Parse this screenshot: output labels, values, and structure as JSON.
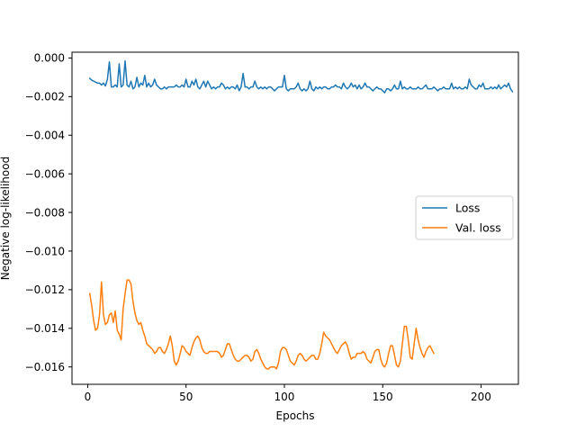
{
  "chart_data": {
    "type": "line",
    "title": "",
    "xlabel": "Epochs",
    "ylabel": "Negative log-likelihood",
    "xlim": [
      -8,
      219
    ],
    "ylim": [
      -0.0169,
      0.0003
    ],
    "xticks": [
      0,
      50,
      100,
      150,
      200
    ],
    "yticks": [
      0.0,
      -0.002,
      -0.004,
      -0.006,
      -0.008,
      -0.01,
      -0.012,
      -0.014,
      -0.016
    ],
    "ytick_labels": [
      "0.000",
      "−0.002",
      "−0.004",
      "−0.006",
      "−0.008",
      "−0.010",
      "−0.012",
      "−0.014",
      "−0.016"
    ],
    "grid": false,
    "legend_position": "center-right",
    "series": [
      {
        "name": "Loss",
        "color": "#1f77b4",
        "x_start": 1,
        "values": [
          -0.00105,
          -0.00115,
          -0.0012,
          -0.00125,
          -0.0013,
          -0.0013,
          -0.0014,
          -0.0013,
          -0.00145,
          -0.0011,
          -0.0002,
          -0.0015,
          -0.0015,
          -0.0014,
          -0.0015,
          -0.0003,
          -0.0015,
          -0.0014,
          -0.00015,
          -0.0014,
          -0.0015,
          -0.0012,
          -0.0016,
          -0.0015,
          -0.001,
          -0.0015,
          -0.0013,
          -0.0014,
          -0.0009,
          -0.0015,
          -0.0013,
          -0.0015,
          -0.0014,
          -0.0011,
          -0.0014,
          -0.0015,
          -0.0016,
          -0.0016,
          -0.0015,
          -0.0016,
          -0.0015,
          -0.0015,
          -0.0015,
          -0.0015,
          -0.0014,
          -0.0015,
          -0.0015,
          -0.0014,
          -0.0015,
          -0.0011,
          -0.0015,
          -0.0015,
          -0.0012,
          -0.0014,
          -0.0011,
          -0.0015,
          -0.0016,
          -0.0014,
          -0.0012,
          -0.0015,
          -0.0012,
          -0.0014,
          -0.0016,
          -0.0015,
          -0.0016,
          -0.0015,
          -0.0015,
          -0.0013,
          -0.0014,
          -0.0016,
          -0.0015,
          -0.0016,
          -0.0015,
          -0.0015,
          -0.0016,
          -0.0014,
          -0.0017,
          -0.0015,
          -0.0008,
          -0.0015,
          -0.0015,
          -0.0016,
          -0.0015,
          -0.0015,
          -0.0012,
          -0.0015,
          -0.0016,
          -0.0015,
          -0.0016,
          -0.0015,
          -0.0016,
          -0.0015,
          -0.0015,
          -0.0016,
          -0.0017,
          -0.0016,
          -0.0015,
          -0.0015,
          -0.0015,
          -0.0009,
          -0.0016,
          -0.0017,
          -0.0016,
          -0.0016,
          -0.0016,
          -0.0015,
          -0.0013,
          -0.0016,
          -0.0017,
          -0.0016,
          -0.0017,
          -0.0016,
          -0.0012,
          -0.0016,
          -0.0017,
          -0.0015,
          -0.0016,
          -0.0015,
          -0.0016,
          -0.0015,
          -0.0015,
          -0.0016,
          -0.0016,
          -0.0015,
          -0.0015,
          -0.0014,
          -0.0015,
          -0.0015,
          -0.0016,
          -0.0013,
          -0.0015,
          -0.0016,
          -0.0015,
          -0.0013,
          -0.0015,
          -0.0014,
          -0.0016,
          -0.0014,
          -0.0016,
          -0.0015,
          -0.0013,
          -0.0015,
          -0.0015,
          -0.0016,
          -0.0017,
          -0.0016,
          -0.0015,
          -0.0016,
          -0.0016,
          -0.0017,
          -0.0018,
          -0.0016,
          -0.0016,
          -0.0017,
          -0.0016,
          -0.0014,
          -0.0016,
          -0.0016,
          -0.0012,
          -0.0016,
          -0.0015,
          -0.0016,
          -0.0016,
          -0.0015,
          -0.0016,
          -0.0016,
          -0.0016,
          -0.0015,
          -0.0016,
          -0.0016,
          -0.0015,
          -0.0014,
          -0.0016,
          -0.0016,
          -0.0016,
          -0.0015,
          -0.0016,
          -0.0017,
          -0.0016,
          -0.0016,
          -0.0015,
          -0.0016,
          -0.0016,
          -0.0016,
          -0.0013,
          -0.0016,
          -0.0015,
          -0.0016,
          -0.0015,
          -0.0016,
          -0.0016,
          -0.0015,
          -0.0016,
          -0.0011,
          -0.0014,
          -0.0015,
          -0.0016,
          -0.0016,
          -0.0014,
          -0.0015,
          -0.0013,
          -0.0016,
          -0.0016,
          -0.0016,
          -0.0015,
          -0.0016,
          -0.0015,
          -0.0016,
          -0.0014,
          -0.0016,
          -0.0015,
          -0.0014,
          -0.0015,
          -0.0013,
          -0.0016,
          -0.00175
        ]
      },
      {
        "name": "Val. loss",
        "color": "#ff7f0e",
        "x_start": 1,
        "values": [
          -0.0122,
          -0.0128,
          -0.0136,
          -0.0141,
          -0.014,
          -0.0133,
          -0.0116,
          -0.0133,
          -0.0138,
          -0.0137,
          -0.0133,
          -0.0132,
          -0.0137,
          -0.0131,
          -0.0141,
          -0.0143,
          -0.0146,
          -0.013,
          -0.0122,
          -0.0115,
          -0.0115,
          -0.0117,
          -0.0126,
          -0.0132,
          -0.0136,
          -0.0138,
          -0.0137,
          -0.0141,
          -0.0144,
          -0.0148,
          -0.0149,
          -0.015,
          -0.0151,
          -0.0153,
          -0.0152,
          -0.015,
          -0.015,
          -0.0152,
          -0.0153,
          -0.0151,
          -0.0148,
          -0.0144,
          -0.0149,
          -0.0157,
          -0.0159,
          -0.0157,
          -0.0153,
          -0.0149,
          -0.015,
          -0.0152,
          -0.0153,
          -0.0154,
          -0.015,
          -0.0147,
          -0.0145,
          -0.0144,
          -0.0146,
          -0.015,
          -0.0152,
          -0.0153,
          -0.0153,
          -0.0152,
          -0.0152,
          -0.0152,
          -0.0152,
          -0.0152,
          -0.0153,
          -0.0155,
          -0.0154,
          -0.0151,
          -0.0148,
          -0.0148,
          -0.0151,
          -0.0154,
          -0.0156,
          -0.0157,
          -0.0157,
          -0.0156,
          -0.0155,
          -0.0154,
          -0.0154,
          -0.0155,
          -0.0157,
          -0.0156,
          -0.0152,
          -0.0151,
          -0.0153,
          -0.0156,
          -0.0158,
          -0.016,
          -0.0161,
          -0.0161,
          -0.016,
          -0.016,
          -0.016,
          -0.0161,
          -0.0158,
          -0.0152,
          -0.015,
          -0.015,
          -0.0151,
          -0.0154,
          -0.0157,
          -0.0158,
          -0.0159,
          -0.0157,
          -0.0154,
          -0.0153,
          -0.0154,
          -0.0156,
          -0.0157,
          -0.0156,
          -0.0155,
          -0.0154,
          -0.0154,
          -0.0156,
          -0.0156,
          -0.0153,
          -0.0148,
          -0.0142,
          -0.0144,
          -0.0145,
          -0.0146,
          -0.0148,
          -0.015,
          -0.0152,
          -0.0153,
          -0.0151,
          -0.0149,
          -0.0148,
          -0.0147,
          -0.0149,
          -0.0153,
          -0.0156,
          -0.0155,
          -0.0155,
          -0.0153,
          -0.0153,
          -0.0153,
          -0.0152,
          -0.0153,
          -0.0156,
          -0.0157,
          -0.0158,
          -0.0155,
          -0.0152,
          -0.0151,
          -0.0151,
          -0.0156,
          -0.0159,
          -0.016,
          -0.0158,
          -0.0153,
          -0.0149,
          -0.0149,
          -0.0154,
          -0.0159,
          -0.016,
          -0.0157,
          -0.0148,
          -0.0139,
          -0.0139,
          -0.0146,
          -0.0155,
          -0.0156,
          -0.0148,
          -0.014,
          -0.0146,
          -0.015,
          -0.0153,
          -0.0155,
          -0.0152,
          -0.015,
          -0.0149,
          -0.0151,
          -0.0153
        ]
      }
    ]
  }
}
